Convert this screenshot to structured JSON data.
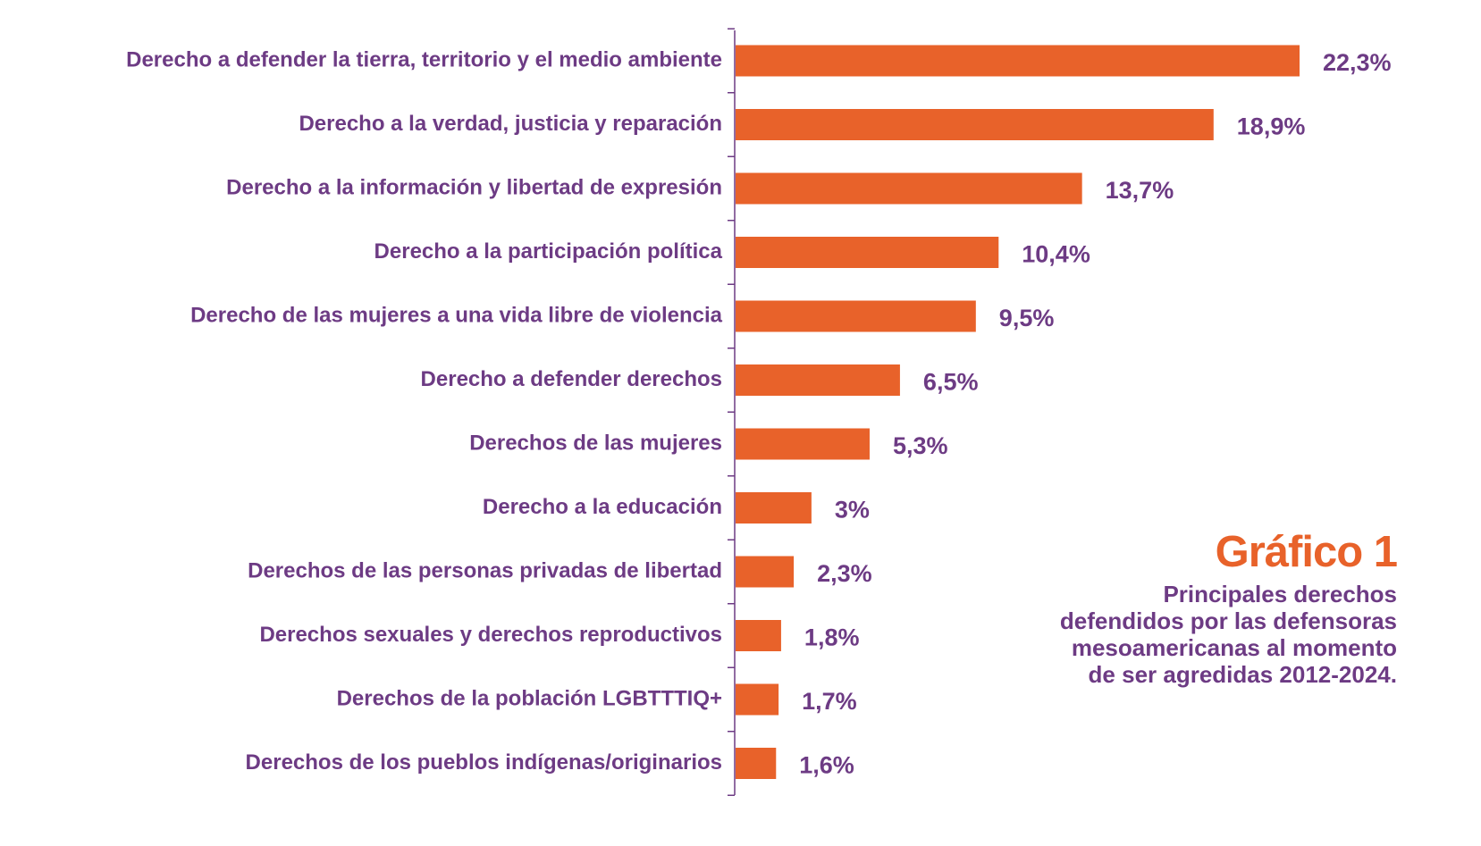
{
  "colors": {
    "bar": "#E8622A",
    "label": "#6D3B84",
    "axis": "#6D3B84",
    "title": "#E8622A",
    "subtitle": "#6D3B84"
  },
  "caption": {
    "title": "Gráfico 1",
    "subtitle": "Principales derechos defendidos por las defensoras mesoamericanas al momento de ser agredidas 2012-2024."
  },
  "chart_data": {
    "type": "bar",
    "orientation": "horizontal",
    "title": "Gráfico 1",
    "subtitle": "Principales derechos defendidos por las defensoras mesoamericanas al momento de ser agredidas 2012-2024.",
    "xlim": [
      0,
      22.3
    ],
    "grid": false,
    "categories": [
      "Derecho a defender la tierra, territorio y el medio ambiente",
      "Derecho a la verdad, justicia y reparación",
      "Derecho a la información y libertad de expresión",
      "Derecho a la participación política",
      "Derecho de las mujeres a una vida libre de violencia",
      "Derecho a defender derechos",
      "Derechos de las mujeres",
      "Derecho a la educación",
      "Derechos de las personas privadas de libertad",
      "Derechos sexuales y derechos reproductivos",
      "Derechos de la población LGBTTTIQ+",
      "Derechos de los pueblos indígenas/originarios"
    ],
    "values": [
      22.3,
      18.9,
      13.7,
      10.4,
      9.5,
      6.5,
      5.3,
      3,
      2.3,
      1.8,
      1.7,
      1.6
    ],
    "value_labels": [
      "22,3%",
      "18,9%",
      "13,7%",
      "10,4%",
      "9,5%",
      "6,5%",
      "5,3%",
      "3%",
      "2,3%",
      "1,8%",
      "1,7%",
      "1,6%"
    ]
  }
}
